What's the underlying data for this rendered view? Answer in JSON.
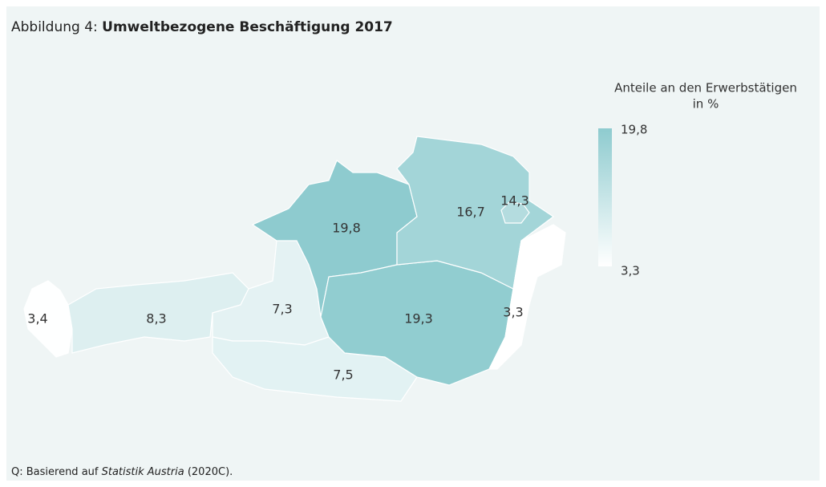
{
  "header": {
    "prefix": "Abbildung 4: ",
    "title": "Umweltbezogene Beschäftigung 2017"
  },
  "legend": {
    "title": [
      "Anteile an den Erwerbstätigen",
      "in %"
    ],
    "max": {
      "value": 19.8,
      "label": "19,8"
    },
    "min": {
      "value": 3.3,
      "label": "3,3"
    },
    "color_low": "#ffffff",
    "color_high": "#8ecbcf"
  },
  "regions": [
    {
      "value": 3.4,
      "label": "3,4"
    },
    {
      "value": 8.3,
      "label": "8,3"
    },
    {
      "value": 7.3,
      "label": "7,3"
    },
    {
      "value": 7.5,
      "label": "7,5"
    },
    {
      "value": 19.8,
      "label": "19,8"
    },
    {
      "value": 19.3,
      "label": "19,3"
    },
    {
      "value": 16.7,
      "label": "16,7"
    },
    {
      "value": 14.3,
      "label": "14,3"
    },
    {
      "value": 3.3,
      "label": "3,3"
    }
  ],
  "source": {
    "before": "Q: Basierend auf ",
    "italic": "Statistik Austria",
    "after": " (2020C)."
  }
}
